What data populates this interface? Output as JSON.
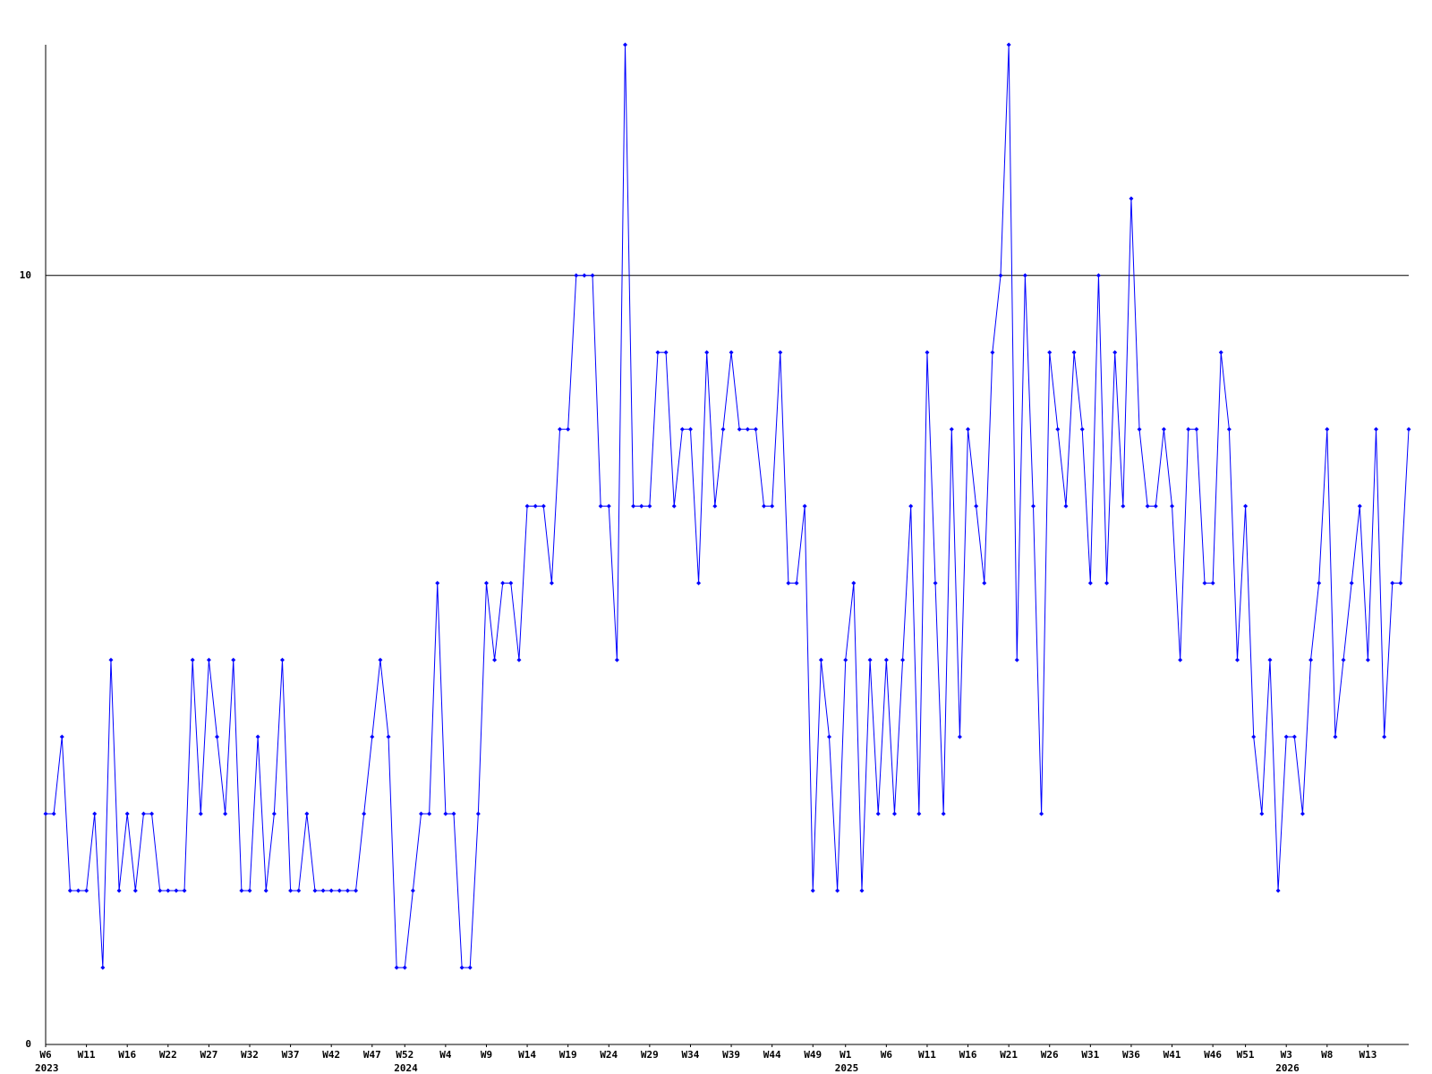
{
  "chart_data": {
    "type": "line",
    "values": [
      3,
      3,
      4,
      2,
      2,
      2,
      3,
      1,
      5,
      2,
      3,
      2,
      3,
      3,
      2,
      2,
      2,
      2,
      5,
      3,
      5,
      4,
      3,
      5,
      2,
      2,
      4,
      2,
      3,
      5,
      2,
      2,
      3,
      2,
      2,
      2,
      2,
      2,
      2,
      3,
      4,
      5,
      4,
      1,
      1,
      2,
      3,
      3,
      6,
      3,
      3,
      1,
      1,
      3,
      6,
      5,
      6,
      6,
      5,
      7,
      7,
      7,
      6,
      8,
      8,
      10,
      10,
      10,
      7,
      7,
      5,
      13,
      7,
      7,
      7,
      9,
      9,
      7,
      8,
      8,
      6,
      9,
      7,
      8,
      9,
      8,
      8,
      8,
      7,
      7,
      9,
      6,
      6,
      7,
      2,
      5,
      4,
      2,
      5,
      6,
      2,
      5,
      3,
      5,
      3,
      5,
      7,
      3,
      9,
      6,
      3,
      8,
      4,
      8,
      7,
      6,
      9,
      10,
      13,
      5,
      10,
      7,
      3,
      9,
      8,
      7,
      9,
      8,
      6,
      10,
      6,
      9,
      7,
      11,
      8,
      7,
      7,
      8,
      7,
      5,
      8,
      8,
      6,
      6,
      9,
      8,
      5,
      7,
      4,
      3,
      5,
      2,
      4,
      4,
      3,
      5,
      6,
      8,
      4,
      5,
      6,
      7,
      5,
      8,
      4,
      6,
      6,
      8
    ],
    "color": "#0000ff",
    "xlim": [
      0,
      167
    ],
    "xticks": [
      {
        "value": 0,
        "label": "W6"
      },
      {
        "value": 5,
        "label": "W11"
      },
      {
        "value": 10,
        "label": "W16"
      },
      {
        "value": 15,
        "label": "W22"
      },
      {
        "value": 20,
        "label": "W27"
      },
      {
        "value": 25,
        "label": "W32"
      },
      {
        "value": 30,
        "label": "W37"
      },
      {
        "value": 35,
        "label": "W42"
      },
      {
        "value": 40,
        "label": "W47"
      },
      {
        "value": 44,
        "label": "W52"
      },
      {
        "value": 49,
        "label": "W4"
      },
      {
        "value": 54,
        "label": "W9"
      },
      {
        "value": 59,
        "label": "W14"
      },
      {
        "value": 64,
        "label": "W19"
      },
      {
        "value": 69,
        "label": "W24"
      },
      {
        "value": 74,
        "label": "W29"
      },
      {
        "value": 79,
        "label": "W34"
      },
      {
        "value": 84,
        "label": "W39"
      },
      {
        "value": 89,
        "label": "W44"
      },
      {
        "value": 94,
        "label": "W49"
      },
      {
        "value": 98,
        "label": "W1"
      },
      {
        "value": 103,
        "label": "W6"
      },
      {
        "value": 108,
        "label": "W11"
      },
      {
        "value": 113,
        "label": "W16"
      },
      {
        "value": 118,
        "label": "W21"
      },
      {
        "value": 123,
        "label": "W26"
      },
      {
        "value": 128,
        "label": "W31"
      },
      {
        "value": 133,
        "label": "W36"
      },
      {
        "value": 138,
        "label": "W41"
      },
      {
        "value": 143,
        "label": "W46"
      },
      {
        "value": 147,
        "label": "W51"
      },
      {
        "value": 152,
        "label": "W3"
      },
      {
        "value": 157,
        "label": "W8"
      },
      {
        "value": 162,
        "label": "W13"
      }
    ],
    "year_ticks": [
      {
        "value": 0,
        "label": "2023"
      },
      {
        "value": 44,
        "label": "2024"
      },
      {
        "value": 98,
        "label": "2025"
      },
      {
        "value": 152,
        "label": "2026"
      }
    ],
    "ylim": [
      0,
      13
    ],
    "yticks": [
      0,
      10
    ],
    "grid": true
  }
}
